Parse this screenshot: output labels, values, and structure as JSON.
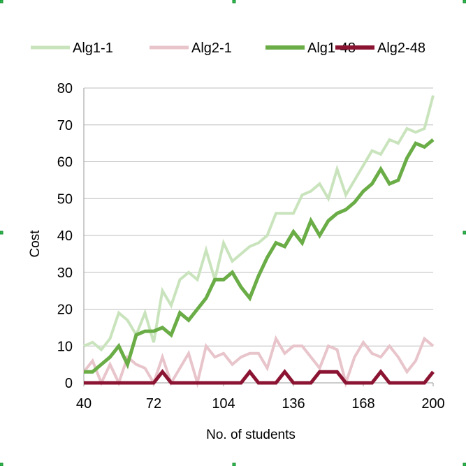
{
  "chart_data": {
    "type": "line",
    "title": "",
    "xlabel": "No. of students",
    "ylabel": "Cost",
    "xlim": [
      40,
      200
    ],
    "ylim": [
      0,
      80
    ],
    "x_ticks": [
      "40",
      "72",
      "104",
      "136",
      "168",
      "200"
    ],
    "y_ticks": [
      "0",
      "10",
      "20",
      "30",
      "40",
      "50",
      "60",
      "70",
      "80"
    ],
    "grid": "horizontal",
    "legend_position": "top",
    "x": [
      40,
      44,
      48,
      52,
      56,
      60,
      64,
      68,
      72,
      76,
      80,
      84,
      88,
      92,
      96,
      100,
      104,
      108,
      112,
      116,
      120,
      124,
      128,
      132,
      136,
      140,
      144,
      148,
      152,
      156,
      160,
      164,
      168,
      172,
      176,
      180,
      184,
      188,
      192,
      196,
      200
    ],
    "series": [
      {
        "name": "Alg1-1",
        "color": "#c9e4bd",
        "width": "thin",
        "values": [
          10,
          11,
          9,
          12,
          19,
          17,
          13,
          19,
          11,
          25,
          21,
          28,
          30,
          28,
          36,
          28,
          38,
          33,
          35,
          37,
          38,
          40,
          46,
          46,
          46,
          51,
          52,
          54,
          50,
          58,
          51,
          55,
          59,
          63,
          62,
          66,
          65,
          69,
          68,
          69,
          78
        ]
      },
      {
        "name": "Alg2-1",
        "color": "#e8c4cb",
        "width": "thin",
        "values": [
          3,
          6,
          0,
          5,
          0,
          7,
          5,
          4,
          0,
          7,
          0,
          4,
          8,
          0,
          10,
          7,
          8,
          5,
          7,
          8,
          8,
          4,
          12,
          8,
          10,
          10,
          7,
          4,
          10,
          9,
          0,
          7,
          11,
          8,
          7,
          10,
          7,
          3,
          6,
          12,
          10
        ]
      },
      {
        "name": "Alg1-48",
        "color": "#6aad47",
        "width": "thick",
        "values": [
          3,
          3,
          5,
          7,
          10,
          5,
          13,
          14,
          14,
          15,
          13,
          19,
          17,
          20,
          23,
          28,
          28,
          30,
          26,
          23,
          29,
          34,
          38,
          37,
          41,
          38,
          44,
          40,
          44,
          46,
          47,
          49,
          52,
          54,
          58,
          54,
          55,
          61,
          65,
          64,
          66
        ]
      },
      {
        "name": "Alg2-48",
        "color": "#8b1432",
        "width": "thick",
        "values": [
          0,
          0,
          0,
          0,
          0,
          0,
          0,
          0,
          0,
          3,
          0,
          0,
          0,
          0,
          0,
          0,
          0,
          0,
          0,
          3,
          0,
          0,
          0,
          3,
          0,
          0,
          0,
          3,
          3,
          3,
          0,
          0,
          0,
          0,
          3,
          0,
          0,
          0,
          0,
          0,
          3
        ]
      }
    ]
  }
}
